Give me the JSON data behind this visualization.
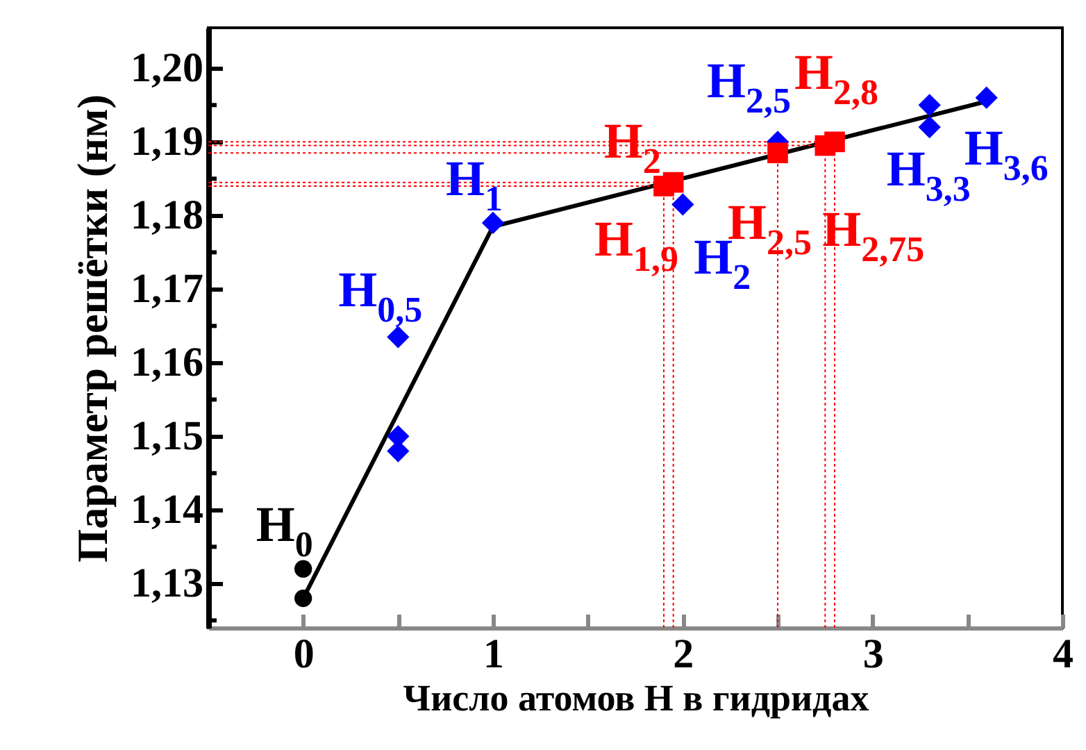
{
  "chart_data": {
    "type": "scatter",
    "xlabel": "Число атомов H в гидридах",
    "ylabel": "Параметр решётки (нм)",
    "xlim": [
      -0.5,
      4
    ],
    "ylim": [
      1.124,
      1.2055
    ],
    "xticks": [
      {
        "value": -0.5,
        "label": null
      },
      0,
      {
        "value": 0.5,
        "label": null
      },
      1,
      {
        "value": 1.5,
        "label": null
      },
      2,
      {
        "value": 2.5,
        "label": null
      },
      3,
      {
        "value": 3.5,
        "label": null
      },
      4
    ],
    "yticks": [
      {
        "value": 1.125,
        "label": null
      },
      {
        "value": 1.13,
        "label": "1,13"
      },
      {
        "value": 1.135,
        "label": null
      },
      {
        "value": 1.14,
        "label": "1,14"
      },
      {
        "value": 1.145,
        "label": null
      },
      {
        "value": 1.15,
        "label": "1,15"
      },
      {
        "value": 1.155,
        "label": null
      },
      {
        "value": 1.16,
        "label": "1,16"
      },
      {
        "value": 1.165,
        "label": null
      },
      {
        "value": 1.17,
        "label": "1,17"
      },
      {
        "value": 1.175,
        "label": null
      },
      {
        "value": 1.18,
        "label": "1,18"
      },
      {
        "value": 1.185,
        "label": null
      },
      {
        "value": 1.19,
        "label": "1,19"
      },
      {
        "value": 1.195,
        "label": null
      },
      {
        "value": 1.2,
        "label": "1,20"
      }
    ],
    "series": [
      {
        "type": "line",
        "color": "#000000",
        "marker": "none",
        "line_style": "solid",
        "x": [
          0,
          1,
          3.6
        ],
        "values": [
          1.128,
          1.1785,
          1.1955
        ]
      },
      {
        "color": "#000000",
        "marker": "circle",
        "x": [
          0,
          0
        ],
        "values": [
          1.132,
          1.128
        ]
      },
      {
        "color": "#0000ff",
        "marker": "diamond",
        "x": [
          0.5,
          0.5,
          0.5,
          1,
          2,
          2.5,
          3.3,
          3.3,
          3.6
        ],
        "values": [
          1.1635,
          1.15,
          1.148,
          1.179,
          1.1815,
          1.19,
          1.195,
          1.192,
          1.196
        ]
      },
      {
        "color": "#ff0000",
        "marker": "square",
        "x": [
          1.9,
          1.95,
          2.5,
          2.75,
          2.8
        ],
        "values": [
          1.184,
          1.1845,
          1.1885,
          1.1895,
          1.19
        ]
      }
    ],
    "annotations": [
      {
        "text": "H$_{0}$",
        "x": 0,
        "y": 1.132
      },
      {
        "text": "H$_{0,5}$",
        "x": 0.5,
        "y": 1.1635
      },
      {
        "text": "H$_{1}$",
        "x": 1,
        "y": 1.179
      },
      {
        "text": "H$_{2}$",
        "x": 2,
        "y": 1.1815
      },
      {
        "text": "H$_{2,5}$",
        "x": 2.5,
        "y": 1.19
      },
      {
        "text": "H$_{3,3}$",
        "x": 3.3,
        "y": 1.192
      },
      {
        "text": "H$_{3,6}$",
        "x": 3.6,
        "y": 1.196
      },
      {
        "text": "H$_{1,9}$",
        "x": 1.9,
        "y": 1.184
      },
      {
        "text": "H$_{2}$",
        "x": 1.95,
        "y": 1.1845
      },
      {
        "text": "H$_{2,5}$",
        "x": 2.5,
        "y": 1.1885
      },
      {
        "text": "H$_{2,75}$",
        "x": 2.75,
        "y": 1.1895
      },
      {
        "text": "H$_{2,8}$",
        "x": 2.8,
        "y": 1.19
      }
    ],
    "ref_lines": [
      {
        "axis": "x",
        "value": 1.9,
        "color": "#ff0000",
        "line_style": "dotted"
      },
      {
        "axis": "x",
        "value": 1.95,
        "color": "#ff0000",
        "line_style": "dotted"
      },
      {
        "axis": "x",
        "value": 2.5,
        "color": "#ff0000",
        "line_style": "dotted"
      },
      {
        "axis": "x",
        "value": 2.75,
        "color": "#ff0000",
        "line_style": "dotted"
      },
      {
        "axis": "x",
        "value": 2.8,
        "color": "#ff0000",
        "line_style": "dotted"
      },
      {
        "axis": "y",
        "value": 1.184,
        "color": "#ff0000",
        "line_style": "dotted"
      },
      {
        "axis": "y",
        "value": 1.1845,
        "color": "#ff0000",
        "line_style": "dotted"
      },
      {
        "axis": "y",
        "value": 1.1885,
        "color": "#ff0000",
        "line_style": "dotted"
      },
      {
        "axis": "y",
        "value": 1.1895,
        "color": "#ff0000",
        "line_style": "dotted"
      },
      {
        "axis": "y",
        "value": 1.19,
        "color": "#ff0000",
        "line_style": "dotted"
      }
    ],
    "grid": false
  }
}
